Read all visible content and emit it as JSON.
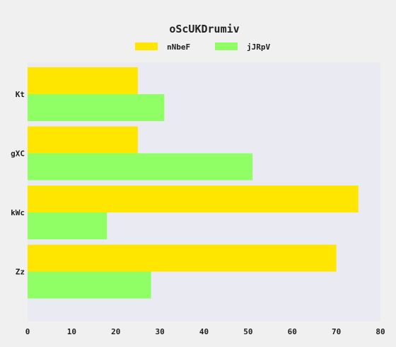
{
  "chart_data": {
    "type": "bar",
    "orientation": "horizontal",
    "title": "oScUKDrumiv",
    "xlabel": "",
    "ylabel": "",
    "categories": [
      "Kt",
      "gXC",
      "kWc",
      "Zz"
    ],
    "series": [
      {
        "name": "nNbeF",
        "color": "#ffe600",
        "values": [
          25,
          25,
          75,
          70
        ]
      },
      {
        "name": "jJRpV",
        "color": "#90ff66",
        "values": [
          31,
          51,
          18,
          28
        ]
      }
    ],
    "xlim": [
      0,
      80
    ],
    "xticks": [
      0,
      10,
      20,
      30,
      40,
      50,
      60,
      70,
      80
    ],
    "grid": false,
    "legend_position": "top-center",
    "plot_background": "#eaeaf2",
    "page_background": "#f0f0f0"
  }
}
